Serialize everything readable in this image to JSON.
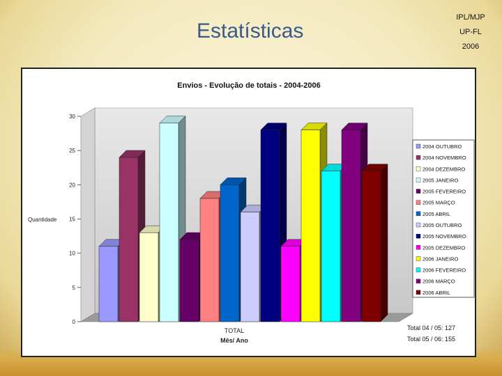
{
  "slide": {
    "title": "Estatísticas",
    "org_lines": [
      "IPL/MJP",
      "UP-FL",
      "2006"
    ]
  },
  "chart_data": {
    "type": "bar",
    "title": "Envios - Evolução de totais - 2004-2006",
    "xlabel": "Mês/ Ano",
    "ylabel": "Quantidade",
    "category": "TOTAL",
    "ylim": [
      0,
      30
    ],
    "yticks": [
      0,
      5,
      10,
      15,
      20,
      25,
      30
    ],
    "grid": false,
    "legend_position": "right",
    "series": [
      {
        "name": "2004 OUTUBRO",
        "value": 11,
        "color": "#9999ff"
      },
      {
        "name": "2004 NOVEMBRO",
        "value": 24,
        "color": "#993366"
      },
      {
        "name": "2004 DEZEMBRO",
        "value": 13,
        "color": "#ffffcc"
      },
      {
        "name": "2005 JANEIRO",
        "value": 29,
        "color": "#ccffff"
      },
      {
        "name": "2005 FEVEREIRO",
        "value": 12,
        "color": "#660066"
      },
      {
        "name": "2005 MARÇO",
        "value": 18,
        "color": "#ff8080"
      },
      {
        "name": "2005 ABRIL",
        "value": 20,
        "color": "#0066cc"
      },
      {
        "name": "2005 OUTUBRO",
        "value": 16,
        "color": "#ccccff"
      },
      {
        "name": "2005 NOVEMBRO",
        "value": 28,
        "color": "#000080"
      },
      {
        "name": "2005 DEZEMBRO",
        "value": 11,
        "color": "#ff00ff"
      },
      {
        "name": "2006 JANEIRO",
        "value": 28,
        "color": "#ffff00"
      },
      {
        "name": "2006 FEVEREIRO",
        "value": 22,
        "color": "#00ffff"
      },
      {
        "name": "2006 MARÇO",
        "value": 28,
        "color": "#800080"
      },
      {
        "name": "2006 ABRIL",
        "value": 22,
        "color": "#800000"
      }
    ],
    "annotations": [
      "Total 04 / 05: 127",
      "Total 05 / 06: 155"
    ]
  }
}
